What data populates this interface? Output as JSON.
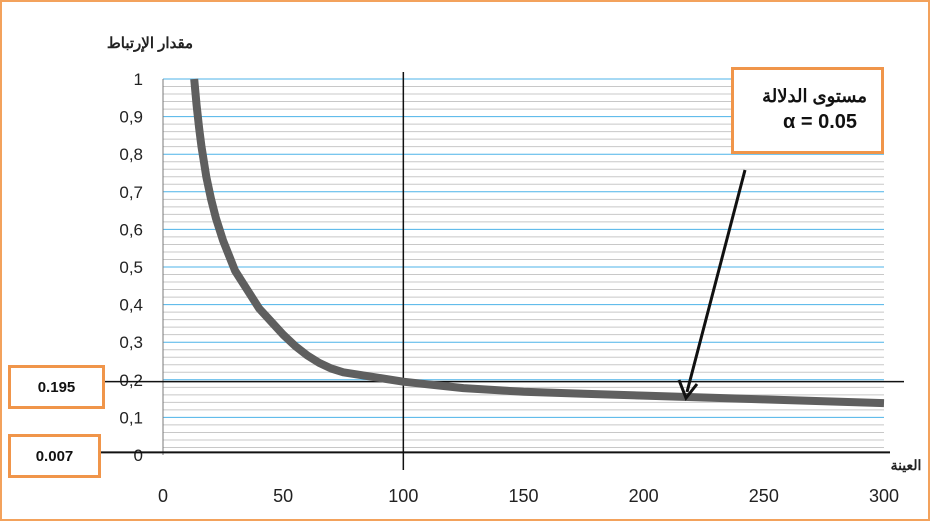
{
  "chart_data": {
    "type": "line",
    "ylabel": "مقدار الإرتباط",
    "xlabel": "العينة",
    "xlim": [
      0,
      300
    ],
    "ylim": [
      0,
      1
    ],
    "xticks": [
      "0",
      "50",
      "100",
      "150",
      "200",
      "250",
      "300"
    ],
    "yticks": [
      "0",
      "0,1",
      "0,2",
      "0,3",
      "0,4",
      "0,5",
      "0,6",
      "0,7",
      "0,8",
      "0,9",
      "1"
    ],
    "grid": true,
    "series": [
      {
        "x": [
          13,
          14,
          15,
          16,
          18,
          20,
          22,
          25,
          30,
          35,
          40,
          45,
          50,
          55,
          60,
          65,
          70,
          75,
          80,
          90,
          100,
          110,
          125,
          150,
          175,
          200,
          225,
          250,
          275,
          300
        ],
        "y": [
          1.0,
          0.93,
          0.87,
          0.82,
          0.74,
          0.68,
          0.63,
          0.57,
          0.49,
          0.44,
          0.39,
          0.355,
          0.32,
          0.29,
          0.265,
          0.245,
          0.23,
          0.22,
          0.215,
          0.205,
          0.195,
          0.188,
          0.178,
          0.168,
          0.163,
          0.158,
          0.153,
          0.148,
          0.143,
          0.138
        ],
        "color": "#5f5f5f"
      }
    ],
    "reference_lines": {
      "vertical_x": 100,
      "horizontal_y": [
        0.195,
        0.007
      ]
    }
  },
  "annotation": {
    "title": "مستوى الدلالة",
    "alpha": "α = 0.05"
  },
  "value_boxes": {
    "upper": "0.195",
    "lower": "0.007"
  },
  "colors": {
    "grid_major": "#4db3e8",
    "grid_minor": "#c8c8c8",
    "curve": "#5f5f5f",
    "box_border": "#f0954a"
  }
}
